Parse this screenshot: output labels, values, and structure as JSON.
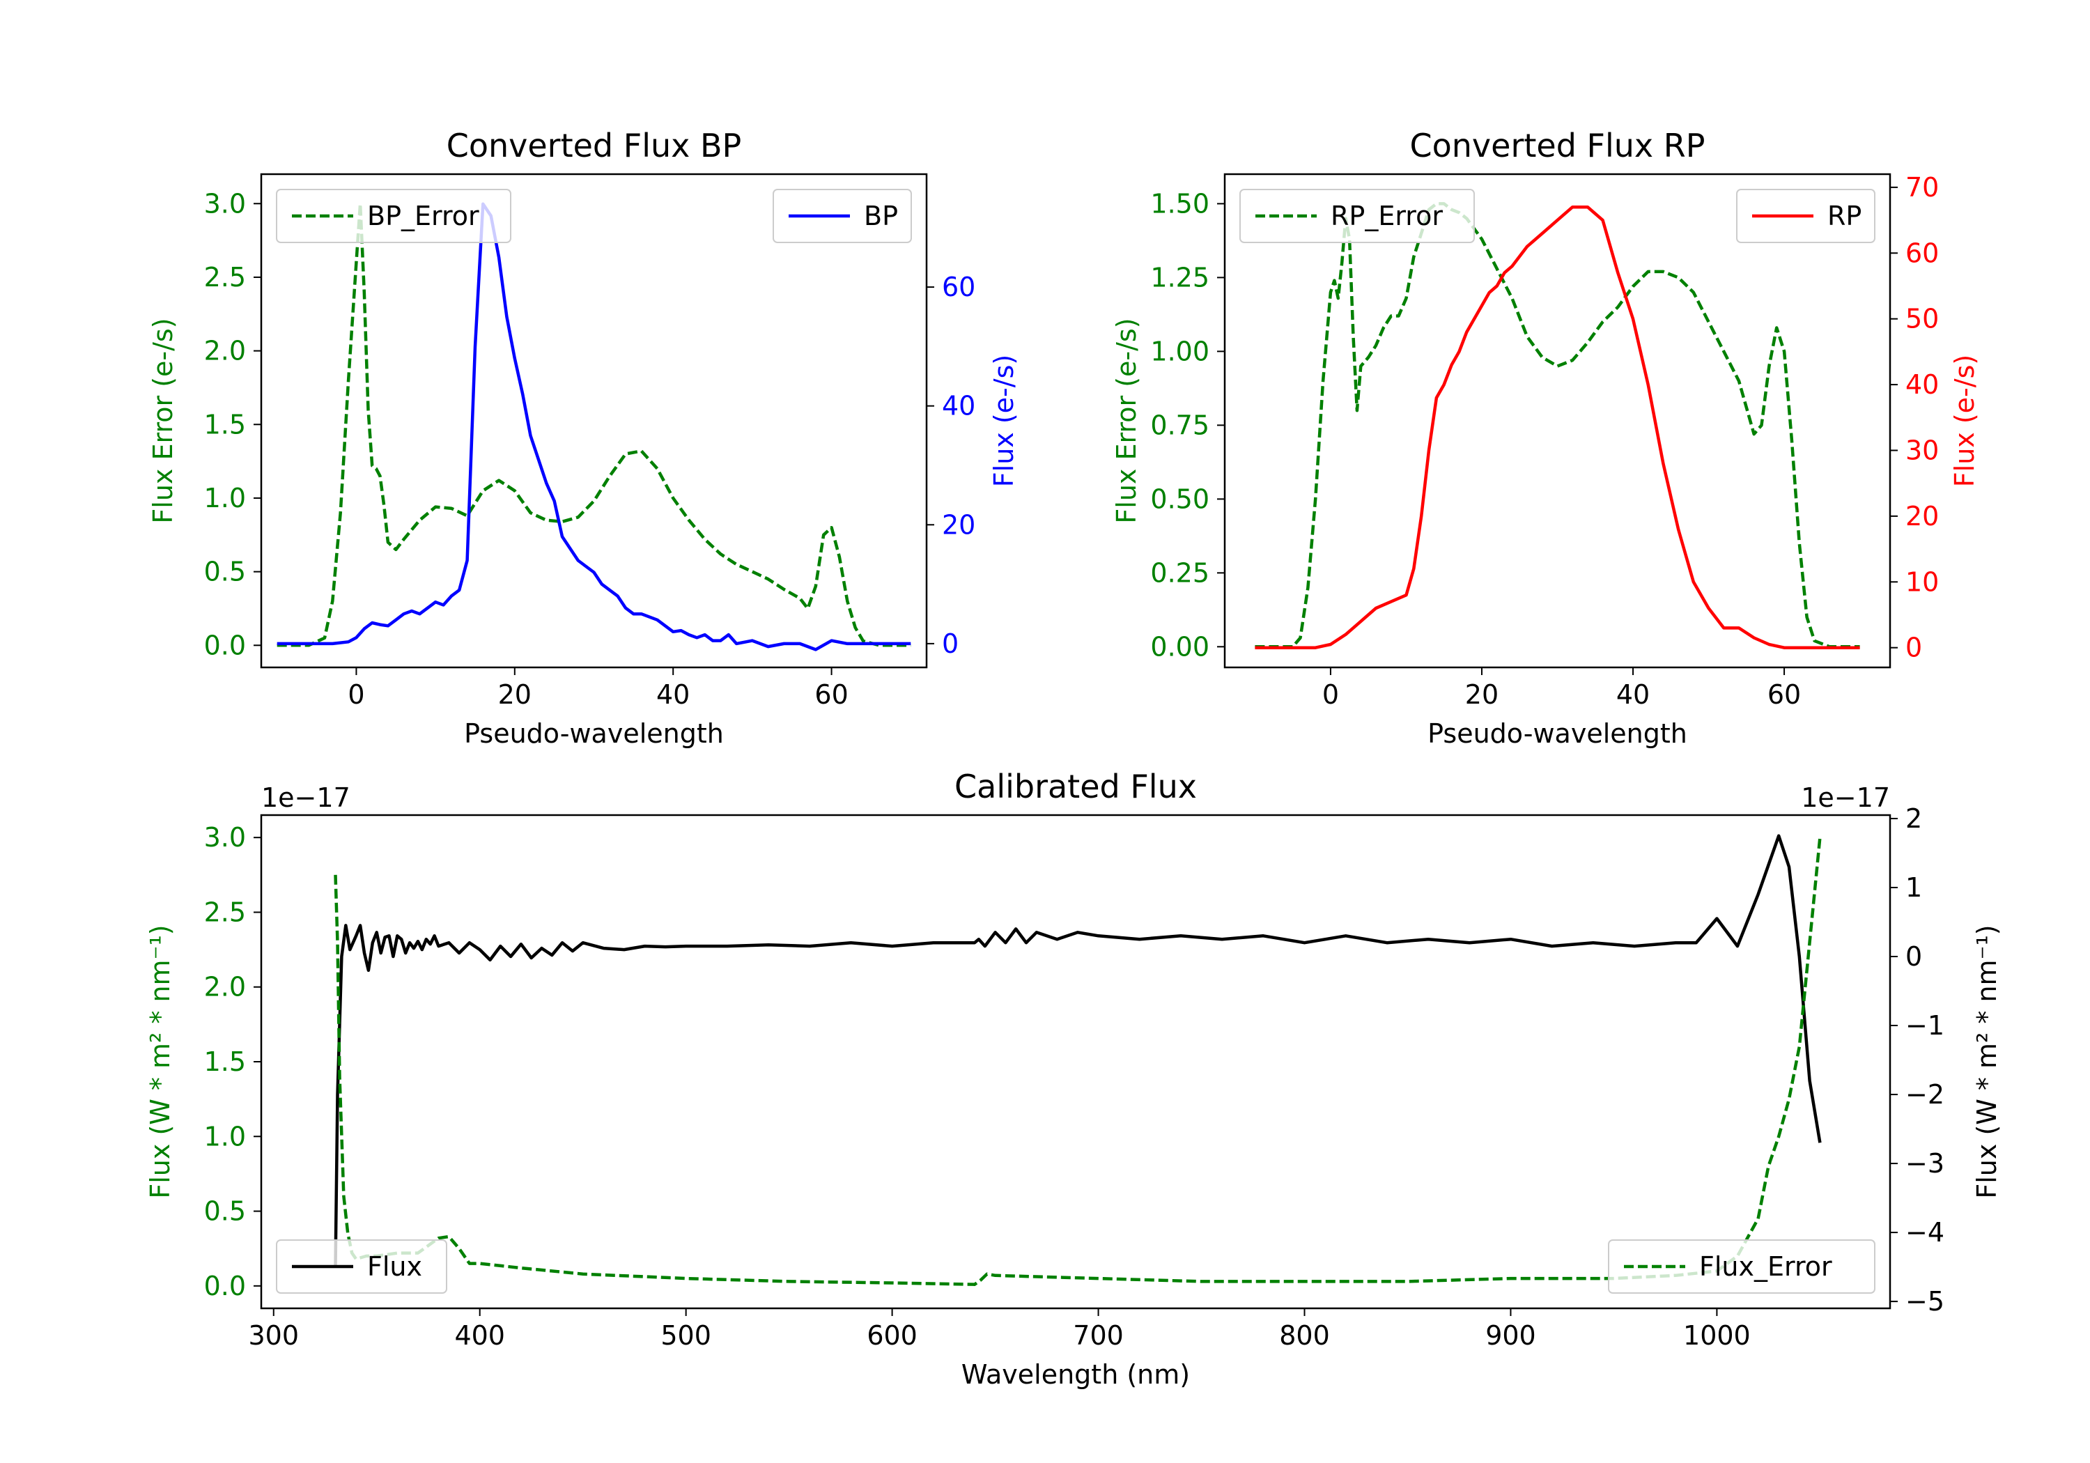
{
  "chart_data": [
    {
      "type": "line",
      "title": "Converted Flux BP",
      "xlabel": "Pseudo-wavelength",
      "ylabel_left": "Flux Error (e-/s)",
      "ylabel_right": "Flux (e-/s)",
      "xlim": [
        -12,
        72
      ],
      "ylim_left": [
        -0.15,
        3.2
      ],
      "ylim_right": [
        -4,
        79
      ],
      "xticks": [
        "0",
        "20",
        "40",
        "60"
      ],
      "xtick_values": [
        0,
        20,
        40,
        60
      ],
      "yticks_left": [
        "0.0",
        "0.5",
        "1.0",
        "1.5",
        "2.0",
        "2.5",
        "3.0"
      ],
      "ytick_values_left": [
        0,
        0.5,
        1,
        1.5,
        2,
        2.5,
        3
      ],
      "yticks_right": [
        "0",
        "20",
        "40",
        "60"
      ],
      "ytick_values_right": [
        0,
        20,
        40,
        60
      ],
      "legend_left": "top-left",
      "legend_right": "top-right",
      "series": [
        {
          "name": "BP_Error",
          "axis": "left",
          "color": "#008000",
          "style": "dashed",
          "x": [
            -10,
            -6,
            -4,
            -3,
            -2,
            -1,
            0,
            0.5,
            1,
            1.5,
            2,
            2.5,
            3,
            3.5,
            4,
            5,
            6,
            8,
            10,
            12,
            14,
            16,
            18,
            20,
            22,
            24,
            26,
            28,
            30,
            32,
            34,
            36,
            38,
            40,
            42,
            44,
            46,
            48,
            50,
            52,
            54,
            56,
            57,
            58,
            59,
            60,
            61,
            62,
            63,
            64,
            66,
            70
          ],
          "y": [
            0,
            0,
            0.05,
            0.3,
            0.9,
            1.8,
            2.6,
            3.0,
            2.4,
            1.6,
            1.22,
            1.2,
            1.15,
            0.95,
            0.7,
            0.65,
            0.72,
            0.85,
            0.94,
            0.93,
            0.88,
            1.05,
            1.12,
            1.05,
            0.9,
            0.85,
            0.84,
            0.87,
            0.98,
            1.15,
            1.3,
            1.32,
            1.2,
            1.0,
            0.85,
            0.72,
            0.62,
            0.55,
            0.5,
            0.45,
            0.38,
            0.32,
            0.25,
            0.4,
            0.75,
            0.8,
            0.6,
            0.3,
            0.12,
            0.03,
            0,
            0
          ]
        },
        {
          "name": "BP",
          "axis": "right",
          "color": "#0000ff",
          "style": "solid",
          "x": [
            -10,
            -3,
            -1,
            0,
            1,
            2,
            3,
            4,
            5,
            6,
            7,
            8,
            9,
            10,
            11,
            12,
            13,
            14,
            15,
            16,
            17,
            18,
            19,
            20,
            21,
            22,
            23,
            24,
            25,
            26,
            27,
            28,
            29,
            30,
            31,
            32,
            33,
            34,
            35,
            36,
            38,
            40,
            41,
            42,
            43,
            44,
            45,
            46,
            47,
            48,
            50,
            52,
            54,
            56,
            58,
            60,
            62,
            64,
            70
          ],
          "y": [
            0,
            0,
            0.3,
            1,
            2.5,
            3.5,
            3.2,
            3,
            4,
            5,
            5.5,
            5,
            6,
            7,
            6.5,
            8,
            9,
            14,
            50,
            74,
            72,
            65,
            55,
            48,
            42,
            35,
            31,
            27,
            24,
            18,
            16,
            14,
            13,
            12,
            10,
            9,
            8,
            6,
            5,
            5,
            4,
            2,
            2.2,
            1.5,
            1,
            1.5,
            0.5,
            0.5,
            1.5,
            0,
            0.5,
            -0.5,
            0,
            0,
            -1,
            0.5,
            0,
            0,
            0
          ]
        }
      ]
    },
    {
      "type": "line",
      "title": "Converted Flux RP",
      "xlabel": "Pseudo-wavelength",
      "ylabel_left": "Flux Error (e-/s)",
      "ylabel_right": "Flux (e-/s)",
      "xlim": [
        -14,
        74
      ],
      "ylim_left": [
        -0.07,
        1.6
      ],
      "ylim_right": [
        -3,
        72
      ],
      "xticks": [
        "0",
        "20",
        "40",
        "60"
      ],
      "xtick_values": [
        0,
        20,
        40,
        60
      ],
      "yticks_left": [
        "0.00",
        "0.25",
        "0.50",
        "0.75",
        "1.00",
        "1.25",
        "1.50"
      ],
      "ytick_values_left": [
        0,
        0.25,
        0.5,
        0.75,
        1,
        1.25,
        1.5
      ],
      "yticks_right": [
        "0",
        "10",
        "20",
        "30",
        "40",
        "50",
        "60",
        "70"
      ],
      "ytick_values_right": [
        0,
        10,
        20,
        30,
        40,
        50,
        60,
        70
      ],
      "legend_left": "top-left",
      "legend_right": "top-right",
      "series": [
        {
          "name": "RP_Error",
          "axis": "left",
          "color": "#008000",
          "style": "dashed",
          "x": [
            -10,
            -5,
            -4,
            -3,
            -2,
            -1,
            0,
            0.5,
            1,
            1.5,
            2,
            2.5,
            3,
            3.5,
            4,
            5,
            6,
            7,
            8,
            9,
            10,
            11,
            12,
            13,
            14,
            15,
            16,
            17,
            18,
            20,
            22,
            24,
            26,
            28,
            30,
            32,
            34,
            36,
            38,
            40,
            42,
            44,
            46,
            48,
            50,
            52,
            54,
            56,
            57,
            58,
            59,
            60,
            61,
            62,
            63,
            64,
            66,
            70
          ],
          "y": [
            0,
            0,
            0.03,
            0.2,
            0.5,
            0.9,
            1.2,
            1.24,
            1.18,
            1.3,
            1.45,
            1.38,
            1.05,
            0.8,
            0.95,
            0.98,
            1.02,
            1.08,
            1.12,
            1.12,
            1.18,
            1.32,
            1.4,
            1.48,
            1.5,
            1.5,
            1.48,
            1.47,
            1.45,
            1.38,
            1.28,
            1.18,
            1.05,
            0.98,
            0.95,
            0.97,
            1.03,
            1.1,
            1.15,
            1.22,
            1.27,
            1.27,
            1.25,
            1.2,
            1.1,
            1.0,
            0.9,
            0.72,
            0.75,
            0.95,
            1.08,
            1.0,
            0.7,
            0.35,
            0.1,
            0.02,
            0,
            0
          ]
        },
        {
          "name": "RP",
          "axis": "right",
          "color": "#ff0000",
          "style": "solid",
          "x": [
            -10,
            -2,
            0,
            2,
            4,
            6,
            8,
            10,
            11,
            12,
            13,
            14,
            15,
            16,
            17,
            18,
            19,
            20,
            21,
            22,
            23,
            24,
            26,
            28,
            30,
            32,
            34,
            36,
            38,
            40,
            42,
            44,
            46,
            48,
            50,
            52,
            54,
            56,
            58,
            60,
            62,
            64,
            70
          ],
          "y": [
            0,
            0,
            0.5,
            2,
            4,
            6,
            7,
            8,
            12,
            20,
            30,
            38,
            40,
            43,
            45,
            48,
            50,
            52,
            54,
            55,
            57,
            58,
            61,
            63,
            65,
            67,
            67,
            65,
            57,
            50,
            40,
            28,
            18,
            10,
            6,
            3,
            3,
            1.5,
            0.5,
            0,
            0,
            0,
            0
          ]
        }
      ]
    },
    {
      "type": "line",
      "title": "Calibrated Flux",
      "xlabel": "Wavelength (nm)",
      "ylabel_left": "Flux (W * m² * nm⁻¹)",
      "ylabel_right": "Flux (W * m² * nm⁻¹)",
      "offset_left": "1e−17",
      "offset_right": "1e−17",
      "xlim": [
        294,
        1084
      ],
      "ylim_left": [
        -0.15,
        3.15
      ],
      "ylim_right": [
        -5.1,
        2.05
      ],
      "xticks": [
        "300",
        "400",
        "500",
        "600",
        "700",
        "800",
        "900",
        "1000"
      ],
      "xtick_values": [
        300,
        400,
        500,
        600,
        700,
        800,
        900,
        1000
      ],
      "yticks_left": [
        "0.0",
        "0.5",
        "1.0",
        "1.5",
        "2.0",
        "2.5",
        "3.0"
      ],
      "ytick_values_left": [
        0,
        0.5,
        1,
        1.5,
        2,
        2.5,
        3
      ],
      "yticks_right": [
        "−5",
        "−4",
        "−3",
        "−2",
        "−1",
        "0",
        "1",
        "2"
      ],
      "ytick_values_right": [
        -5,
        -4,
        -3,
        -2,
        -1,
        0,
        1,
        2
      ],
      "legend_left": "bottom-left",
      "legend_right": "bottom-right",
      "series": [
        {
          "name": "Flux",
          "axis": "right",
          "color": "#000000",
          "style": "solid",
          "x": [
            330,
            331,
            333,
            335,
            337,
            340,
            342,
            344,
            346,
            348,
            350,
            352,
            354,
            356,
            358,
            360,
            362,
            364,
            366,
            368,
            370,
            372,
            374,
            376,
            378,
            380,
            385,
            390,
            395,
            400,
            405,
            410,
            415,
            420,
            425,
            430,
            435,
            440,
            445,
            450,
            460,
            470,
            480,
            490,
            500,
            520,
            540,
            560,
            580,
            600,
            620,
            640,
            642,
            645,
            650,
            655,
            660,
            665,
            670,
            680,
            690,
            700,
            720,
            740,
            760,
            780,
            800,
            820,
            840,
            860,
            880,
            900,
            920,
            940,
            960,
            980,
            990,
            1000,
            1010,
            1020,
            1030,
            1035,
            1040,
            1045,
            1050
          ],
          "y": [
            -4.5,
            -2,
            0,
            0.45,
            0.1,
            0.3,
            0.45,
            0.05,
            -0.2,
            0.2,
            0.35,
            0.05,
            0.28,
            0.3,
            0,
            0.3,
            0.25,
            0.05,
            0.2,
            0.12,
            0.22,
            0.1,
            0.25,
            0.18,
            0.3,
            0.15,
            0.2,
            0.05,
            0.2,
            0.1,
            -0.05,
            0.15,
            0,
            0.18,
            -0.02,
            0.12,
            0.02,
            0.2,
            0.08,
            0.2,
            0.12,
            0.1,
            0.15,
            0.14,
            0.15,
            0.15,
            0.17,
            0.15,
            0.2,
            0.15,
            0.2,
            0.2,
            0.25,
            0.15,
            0.35,
            0.2,
            0.4,
            0.2,
            0.35,
            0.25,
            0.35,
            0.3,
            0.25,
            0.3,
            0.25,
            0.3,
            0.2,
            0.3,
            0.2,
            0.25,
            0.2,
            0.25,
            0.15,
            0.2,
            0.15,
            0.2,
            0.2,
            0.55,
            0.15,
            0.9,
            1.75,
            1.3,
            0,
            -1.8,
            -2.7
          ]
        },
        {
          "name": "Flux_Error",
          "axis": "left",
          "color": "#008000",
          "style": "dashed",
          "x": [
            330,
            331,
            332,
            334,
            336,
            338,
            340,
            345,
            350,
            360,
            370,
            375,
            380,
            385,
            390,
            395,
            400,
            420,
            450,
            500,
            550,
            600,
            640,
            643,
            646,
            650,
            700,
            750,
            800,
            850,
            900,
            950,
            980,
            1000,
            1010,
            1020,
            1025,
            1030,
            1035,
            1040,
            1045,
            1050
          ],
          "y": [
            2.75,
            2.3,
            1.4,
            0.6,
            0.35,
            0.22,
            0.18,
            0.2,
            0.2,
            0.22,
            0.22,
            0.27,
            0.32,
            0.33,
            0.25,
            0.15,
            0.15,
            0.12,
            0.08,
            0.05,
            0.03,
            0.02,
            0.01,
            0.04,
            0.08,
            0.07,
            0.05,
            0.03,
            0.03,
            0.03,
            0.05,
            0.05,
            0.07,
            0.1,
            0.2,
            0.45,
            0.8,
            1.0,
            1.25,
            1.6,
            2.3,
            3.0
          ]
        }
      ]
    }
  ]
}
